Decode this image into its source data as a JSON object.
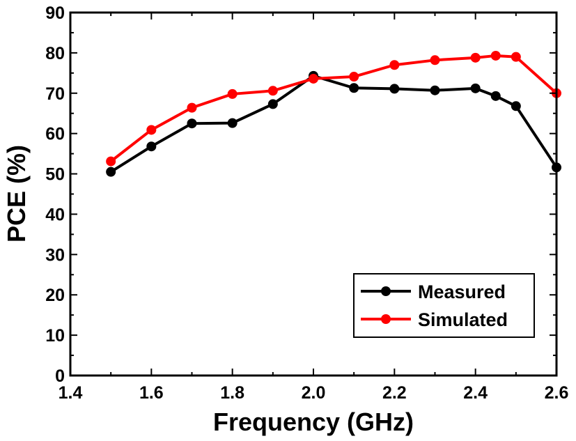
{
  "chart_data": {
    "type": "line",
    "xlabel": "Frequency (GHz)",
    "ylabel": "PCE (%)",
    "xlim": [
      1.4,
      2.6
    ],
    "ylim": [
      0,
      90
    ],
    "xticks": [
      1.4,
      1.6,
      1.8,
      2.0,
      2.2,
      2.4,
      2.6
    ],
    "xtick_labels": [
      "1.4",
      "1.6",
      "1.8",
      "2.0",
      "2.2",
      "2.4",
      "2.6"
    ],
    "yticks": [
      0,
      10,
      20,
      30,
      40,
      50,
      60,
      70,
      80,
      90
    ],
    "ytick_labels": [
      "0",
      "10",
      "20",
      "30",
      "40",
      "50",
      "60",
      "70",
      "80",
      "90"
    ],
    "grid": false,
    "legend_position": "bottom-right",
    "series": [
      {
        "name": "Measured",
        "color": "#000000",
        "x": [
          1.5,
          1.6,
          1.7,
          1.8,
          1.9,
          2.0,
          2.1,
          2.2,
          2.3,
          2.4,
          2.45,
          2.5,
          2.6
        ],
        "y": [
          50.5,
          56.8,
          62.5,
          62.6,
          67.3,
          74.3,
          71.3,
          71.1,
          70.7,
          71.2,
          69.3,
          66.8,
          51.6
        ]
      },
      {
        "name": "Simulated",
        "color": "#ff0000",
        "x": [
          1.5,
          1.6,
          1.7,
          1.8,
          1.9,
          2.0,
          2.1,
          2.2,
          2.3,
          2.4,
          2.45,
          2.5,
          2.6
        ],
        "y": [
          53.1,
          60.9,
          66.4,
          69.8,
          70.6,
          73.6,
          74.1,
          77.0,
          78.2,
          78.8,
          79.3,
          79.0,
          70.0
        ]
      }
    ]
  }
}
